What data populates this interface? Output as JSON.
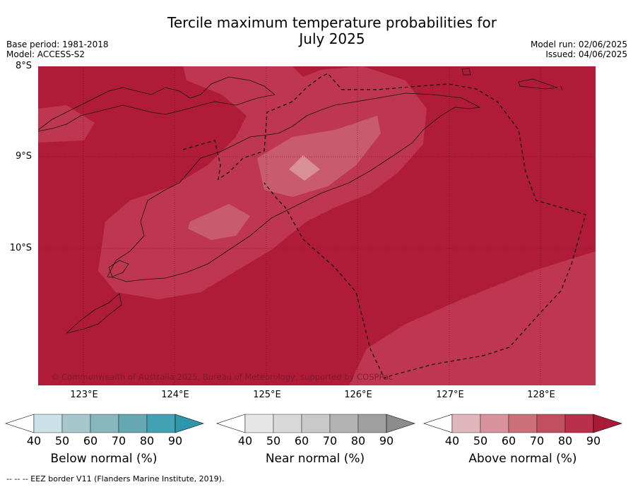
{
  "title": {
    "line1": "Tercile maximum temperature probabilities for",
    "line2": "July 2025"
  },
  "meta": {
    "base_period": "Base period: 1981-2018",
    "model": "Model: ACCESS-S2",
    "model_run": "Model run: 02/06/2025",
    "issued": "Issued: 04/06/2025"
  },
  "map": {
    "lat_labels": [
      "8°S",
      "9°S",
      "10°S"
    ],
    "lon_labels": [
      "123°E",
      "124°E",
      "125°E",
      "126°E",
      "127°E",
      "128°E"
    ],
    "copyright": "© Commonwealth of Australia 2025, Bureau of Meteorology, supported by COSPPac",
    "colors": {
      "above_90": "#b01c38",
      "above_80": "#bf3650",
      "above_70": "#c95c6c",
      "light": "#d98f97"
    }
  },
  "legend": {
    "ticks": [
      "40",
      "50",
      "60",
      "70",
      "80",
      "90"
    ],
    "below": {
      "label": "Below normal (%)",
      "colors": [
        "#ffffff",
        "#c9e1e7",
        "#a8c7cd",
        "#89b7c0",
        "#67a7b4",
        "#44a0b3",
        "#2e97ab"
      ]
    },
    "near": {
      "label": "Near normal (%)",
      "colors": [
        "#ffffff",
        "#e6e6e6",
        "#d9d9d9",
        "#c9c9c9",
        "#b3b3b3",
        "#a0a0a0",
        "#8c8c8c"
      ]
    },
    "above": {
      "label": "Above normal (%)",
      "colors": [
        "#ffffff",
        "#e0b6bd",
        "#d9939c",
        "#cc7077",
        "#c24f5e",
        "#b8304a",
        "#a81a35"
      ]
    }
  },
  "footer": "--  --  -- EEZ border V11 (Flanders Marine Institute, 2019)."
}
